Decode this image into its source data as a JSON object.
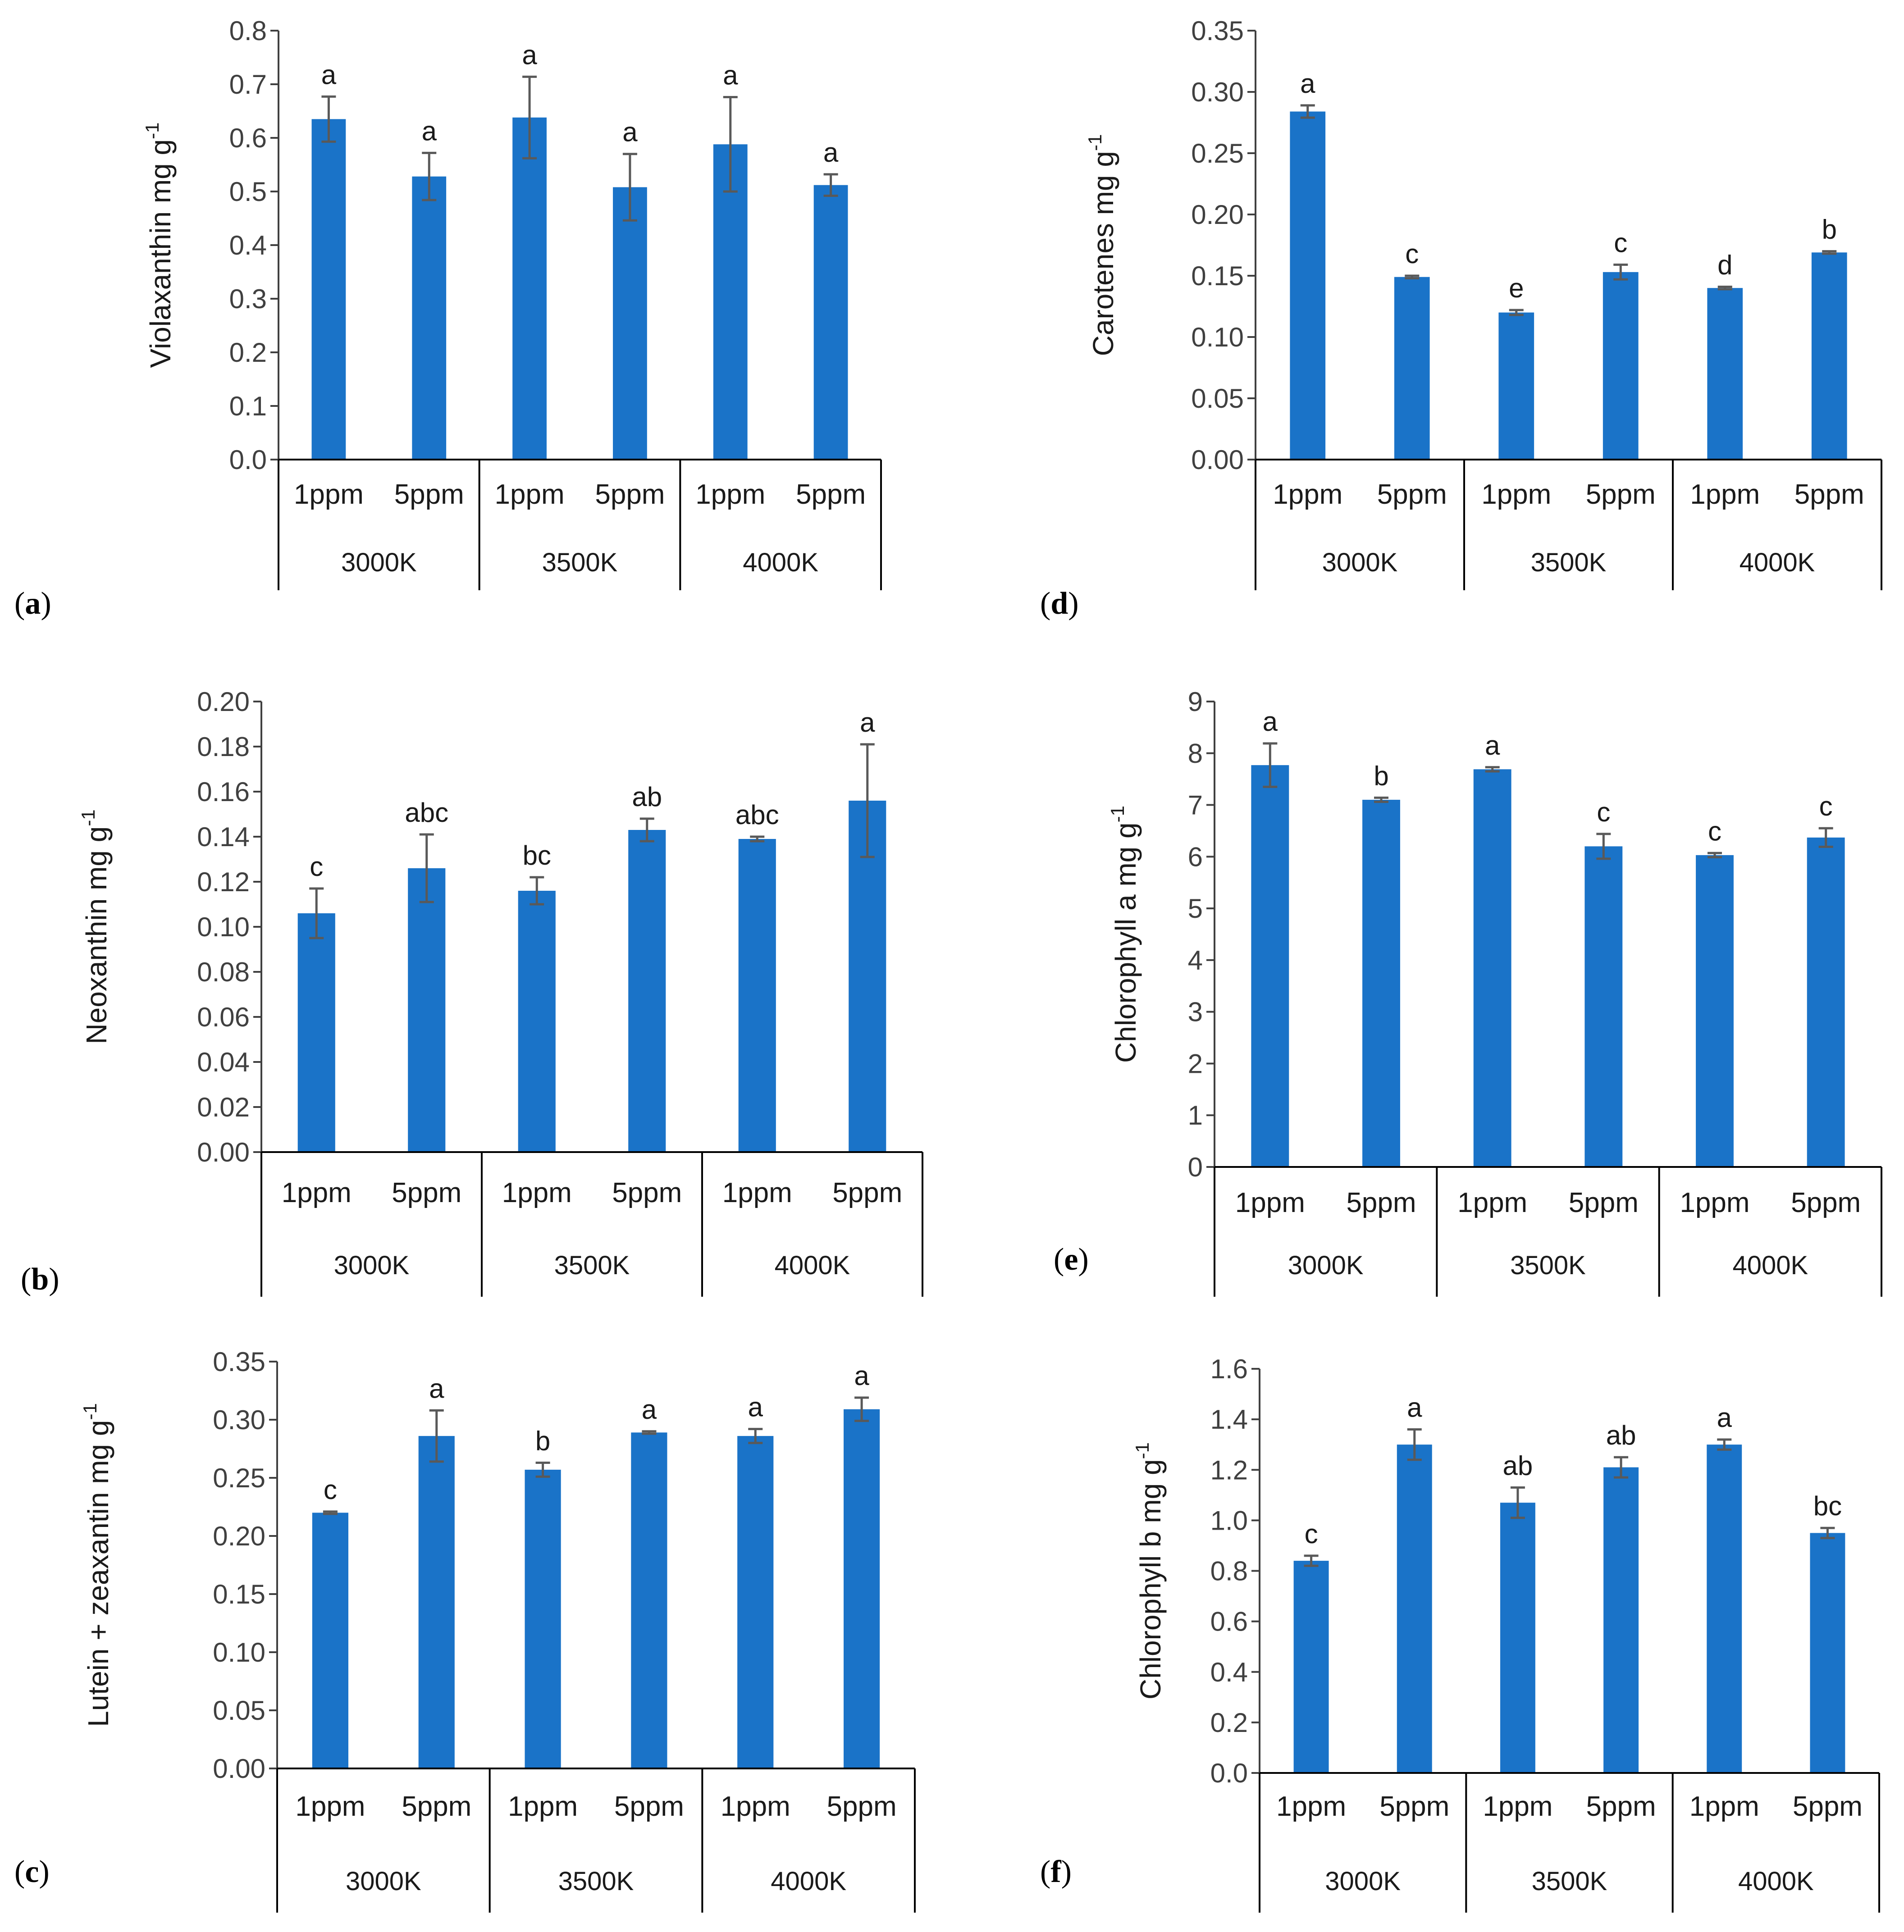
{
  "figure": {
    "background": "#ffffff",
    "bar_color": "#1a73c8",
    "error_color": "#595959",
    "axis_color": "#000000",
    "tick_line_color": "#404040"
  },
  "chart_data": [
    {
      "id": "a",
      "panel_label": "a",
      "type": "bar",
      "ylabel": "Violaxanthin mg g",
      "ylabel_sup": "-1",
      "ylim": [
        0,
        0.8
      ],
      "yticks": [
        "0.0",
        "0.1",
        "0.2",
        "0.3",
        "0.4",
        "0.5",
        "0.6",
        "0.7",
        "0.8"
      ],
      "groups": [
        "3000K",
        "3500K",
        "4000K"
      ],
      "categories": [
        "1ppm",
        "5ppm",
        "1ppm",
        "5ppm",
        "1ppm",
        "5ppm"
      ],
      "values": [
        0.635,
        0.528,
        0.638,
        0.508,
        0.588,
        0.512
      ],
      "errors": [
        0.042,
        0.044,
        0.076,
        0.062,
        0.088,
        0.02
      ],
      "letters": [
        "a",
        "a",
        "a",
        "a",
        "a",
        "a"
      ]
    },
    {
      "id": "b",
      "panel_label": "b",
      "type": "bar",
      "ylabel": "Neoxanthin mg g",
      "ylabel_sup": "-1",
      "ylim": [
        0,
        0.2
      ],
      "yticks": [
        "0.00",
        "0.02",
        "0.04",
        "0.06",
        "0.08",
        "0.10",
        "0.12",
        "0.14",
        "0.16",
        "0.18",
        "0.20"
      ],
      "groups": [
        "3000K",
        "3500K",
        "4000K"
      ],
      "categories": [
        "1ppm",
        "5ppm",
        "1ppm",
        "5ppm",
        "1ppm",
        "5ppm"
      ],
      "values": [
        0.106,
        0.126,
        0.116,
        0.143,
        0.139,
        0.156
      ],
      "errors": [
        0.011,
        0.015,
        0.006,
        0.005,
        0.001,
        0.025
      ],
      "letters": [
        "c",
        "abc",
        "bc",
        "ab",
        "abc",
        "a"
      ]
    },
    {
      "id": "c",
      "panel_label": "c",
      "type": "bar",
      "ylabel": "Lutein + zeaxantin mg g",
      "ylabel_sup": "-1",
      "ylim": [
        0,
        0.35
      ],
      "yticks": [
        "0.00",
        "0.05",
        "0.10",
        "0.15",
        "0.20",
        "0.25",
        "0.30",
        "0.35"
      ],
      "groups": [
        "3000K",
        "3500K",
        "4000K"
      ],
      "categories": [
        "1ppm",
        "5ppm",
        "1ppm",
        "5ppm",
        "1ppm",
        "5ppm"
      ],
      "values": [
        0.22,
        0.286,
        0.257,
        0.289,
        0.286,
        0.309
      ],
      "errors": [
        0.001,
        0.022,
        0.006,
        0.001,
        0.006,
        0.01
      ],
      "letters": [
        "c",
        "a",
        "b",
        "a",
        "a",
        "a"
      ]
    },
    {
      "id": "d",
      "panel_label": "d",
      "type": "bar",
      "ylabel": "Carotenes mg g",
      "ylabel_sup": "-1",
      "ylim": [
        0,
        0.35
      ],
      "yticks": [
        "0.00",
        "0.05",
        "0.10",
        "0.15",
        "0.20",
        "0.25",
        "0.30",
        "0.35"
      ],
      "groups": [
        "3000K",
        "3500K",
        "4000K"
      ],
      "categories": [
        "1ppm",
        "5ppm",
        "1ppm",
        "5ppm",
        "1ppm",
        "5ppm"
      ],
      "values": [
        0.284,
        0.149,
        0.12,
        0.153,
        0.14,
        0.169
      ],
      "errors": [
        0.005,
        0.001,
        0.002,
        0.006,
        0.001,
        0.001
      ],
      "letters": [
        "a",
        "c",
        "e",
        "c",
        "d",
        "b"
      ]
    },
    {
      "id": "e",
      "panel_label": "e",
      "type": "bar",
      "ylabel": "Chlorophyll a mg g",
      "ylabel_sup": "-1",
      "ylim": [
        0,
        9
      ],
      "yticks": [
        "0",
        "1",
        "2",
        "3",
        "4",
        "5",
        "6",
        "7",
        "8",
        "9"
      ],
      "groups": [
        "3000K",
        "3500K",
        "4000K"
      ],
      "categories": [
        "1ppm",
        "5ppm",
        "1ppm",
        "5ppm",
        "1ppm",
        "5ppm"
      ],
      "values": [
        7.77,
        7.1,
        7.69,
        6.2,
        6.03,
        6.37
      ],
      "errors": [
        0.42,
        0.04,
        0.04,
        0.24,
        0.04,
        0.18
      ],
      "letters": [
        "a",
        "b",
        "a",
        "c",
        "c",
        "c"
      ]
    },
    {
      "id": "f",
      "panel_label": "f",
      "type": "bar",
      "ylabel": "Chlorophyll b mg g",
      "ylabel_sup": "-1",
      "ylim": [
        0,
        1.6
      ],
      "yticks": [
        "0.0",
        "0.2",
        "0.4",
        "0.6",
        "0.8",
        "1.0",
        "1.2",
        "1.4",
        "1.6"
      ],
      "groups": [
        "3000K",
        "3500K",
        "4000K"
      ],
      "categories": [
        "1ppm",
        "5ppm",
        "1ppm",
        "5ppm",
        "1ppm",
        "5ppm"
      ],
      "values": [
        0.84,
        1.3,
        1.07,
        1.21,
        1.3,
        0.95
      ],
      "errors": [
        0.02,
        0.06,
        0.06,
        0.04,
        0.02,
        0.02
      ],
      "letters": [
        "c",
        "a",
        "ab",
        "ab",
        "a",
        "bc"
      ]
    }
  ]
}
